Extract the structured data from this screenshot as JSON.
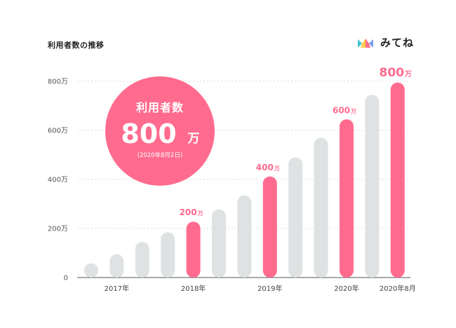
{
  "header": {
    "title": "利用者数の推移"
  },
  "brand": {
    "name": "みてね",
    "icon": "mitene-logo-icon"
  },
  "colors": {
    "highlight": "#ff6b8e",
    "bar": "#dfe2e3",
    "grid": "#cfcfcf"
  },
  "badge": {
    "title": "利用者数",
    "value": "800",
    "unit": "万",
    "date": "(2020年8月2日)"
  },
  "chart_data": {
    "type": "bar",
    "ylim": [
      0,
      800
    ],
    "yticks": [
      {
        "value": 0,
        "label": "0"
      },
      {
        "value": 200,
        "label": "200万"
      },
      {
        "value": 400,
        "label": "400万"
      },
      {
        "value": 600,
        "label": "600万"
      },
      {
        "value": 800,
        "label": "800万"
      }
    ],
    "grid": true,
    "bars": [
      {
        "value": 58,
        "highlight": false
      },
      {
        "value": 95,
        "highlight": false
      },
      {
        "value": 145,
        "highlight": false
      },
      {
        "value": 185,
        "highlight": false
      },
      {
        "value": 228,
        "highlight": true,
        "label": "200",
        "unit": "万"
      },
      {
        "value": 278,
        "highlight": false
      },
      {
        "value": 335,
        "highlight": false
      },
      {
        "value": 412,
        "highlight": true,
        "label": "400",
        "unit": "万"
      },
      {
        "value": 490,
        "highlight": false
      },
      {
        "value": 570,
        "highlight": false
      },
      {
        "value": 645,
        "highlight": true,
        "label": "600",
        "unit": "万"
      },
      {
        "value": 745,
        "highlight": false
      },
      {
        "value": 795,
        "highlight": true,
        "label": "800",
        "unit": "万"
      }
    ],
    "xlabels": [
      {
        "bar": 1,
        "label": "2017年"
      },
      {
        "bar": 4,
        "label": "2018年"
      },
      {
        "bar": 7,
        "label": "2019年"
      },
      {
        "bar": 10,
        "label": "2020年"
      },
      {
        "bar": 12,
        "label": "2020年8月"
      }
    ]
  }
}
